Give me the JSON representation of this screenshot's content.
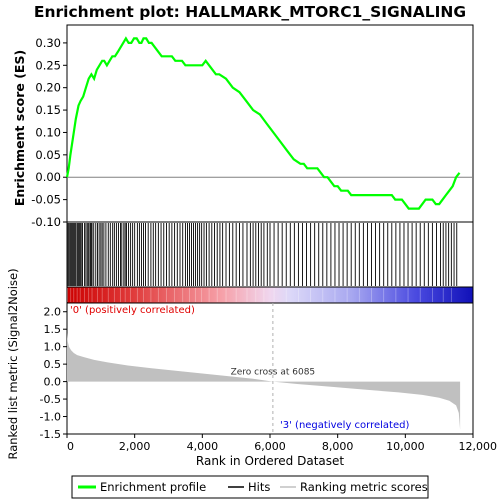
{
  "chart_data": [
    {
      "type": "line",
      "title": "Enrichment plot: HALLMARK_MTORC1_SIGNALING",
      "ylabel": "Enrichment score (ES)",
      "ylim": [
        -0.1,
        0.34
      ],
      "yticks": [
        "0.30",
        "0.25",
        "0.20",
        "0.15",
        "0.10",
        "0.05",
        "0.00",
        "-0.05",
        "-0.10"
      ],
      "ytick_values": [
        0.3,
        0.25,
        0.2,
        0.15,
        0.1,
        0.05,
        0.0,
        -0.05,
        -0.1
      ],
      "xlim": [
        0,
        12000
      ],
      "series": [
        {
          "name": "Enrichment profile",
          "color": "#00ff00",
          "x": [
            0,
            50,
            100,
            180,
            260,
            340,
            400,
            480,
            560,
            640,
            720,
            800,
            880,
            960,
            1040,
            1100,
            1180,
            1260,
            1340,
            1420,
            1500,
            1580,
            1660,
            1740,
            1820,
            1900,
            1980,
            2060,
            2140,
            2200,
            2260,
            2340,
            2420,
            2500,
            2600,
            2700,
            2800,
            2900,
            3000,
            3100,
            3200,
            3300,
            3400,
            3500,
            3600,
            3700,
            3800,
            3900,
            4000,
            4100,
            4200,
            4300,
            4400,
            4500,
            4700,
            4900,
            5100,
            5300,
            5500,
            5700,
            5900,
            6100,
            6300,
            6500,
            6700,
            6900,
            7000,
            7100,
            7200,
            7300,
            7400,
            7500,
            7600,
            7700,
            7800,
            7900,
            8000,
            8100,
            8200,
            8300,
            8400,
            8500,
            8600,
            8700,
            8800,
            8900,
            9000,
            9100,
            9200,
            9300,
            9400,
            9500,
            9600,
            9700,
            9800,
            9900,
            10000,
            10100,
            10200,
            10300,
            10400,
            10500,
            10600,
            10700,
            10800,
            10900,
            11000,
            11100,
            11200,
            11300,
            11400,
            11500,
            11600
          ],
          "values": [
            0.0,
            0.02,
            0.05,
            0.09,
            0.13,
            0.16,
            0.17,
            0.18,
            0.2,
            0.22,
            0.23,
            0.22,
            0.24,
            0.25,
            0.26,
            0.26,
            0.25,
            0.26,
            0.27,
            0.27,
            0.28,
            0.29,
            0.3,
            0.31,
            0.3,
            0.3,
            0.31,
            0.31,
            0.3,
            0.3,
            0.31,
            0.31,
            0.3,
            0.3,
            0.29,
            0.28,
            0.27,
            0.27,
            0.27,
            0.27,
            0.26,
            0.26,
            0.26,
            0.25,
            0.25,
            0.25,
            0.25,
            0.25,
            0.25,
            0.26,
            0.25,
            0.24,
            0.23,
            0.23,
            0.22,
            0.2,
            0.19,
            0.17,
            0.15,
            0.14,
            0.12,
            0.1,
            0.08,
            0.06,
            0.04,
            0.03,
            0.03,
            0.02,
            0.02,
            0.02,
            0.02,
            0.01,
            0.0,
            0.0,
            -0.01,
            -0.02,
            -0.02,
            -0.03,
            -0.03,
            -0.03,
            -0.04,
            -0.04,
            -0.04,
            -0.04,
            -0.04,
            -0.04,
            -0.04,
            -0.04,
            -0.04,
            -0.04,
            -0.04,
            -0.04,
            -0.04,
            -0.05,
            -0.05,
            -0.05,
            -0.06,
            -0.07,
            -0.07,
            -0.07,
            -0.07,
            -0.06,
            -0.05,
            -0.05,
            -0.05,
            -0.06,
            -0.06,
            -0.05,
            -0.04,
            -0.03,
            -0.02,
            0.0,
            0.01
          ]
        }
      ]
    },
    {
      "type": "hits",
      "name": "Hits",
      "xlim": [
        0,
        12000
      ],
      "hit_positions": [
        12,
        40,
        80,
        110,
        140,
        170,
        200,
        230,
        260,
        300,
        330,
        360,
        390,
        420,
        460,
        520,
        560,
        600,
        640,
        680,
        710,
        740,
        790,
        850,
        900,
        950,
        1000,
        1040,
        1090,
        1150,
        1220,
        1280,
        1350,
        1400,
        1460,
        1520,
        1580,
        1620,
        1680,
        1720,
        1760,
        1820,
        1880,
        1940,
        2000,
        2080,
        2140,
        2200,
        2260,
        2320,
        2400,
        2480,
        2550,
        2620,
        2700,
        2780,
        2860,
        2940,
        3020,
        3100,
        3180,
        3260,
        3340,
        3420,
        3500,
        3560,
        3620,
        3680,
        3740,
        3800,
        3860,
        3920,
        3980,
        4050,
        4120,
        4200,
        4280,
        4360,
        4440,
        4520,
        4600,
        4700,
        4800,
        4900,
        5000,
        5100,
        5200,
        5320,
        5420,
        5500,
        5580,
        5660,
        5740,
        5820,
        5920,
        6000,
        6120,
        6240,
        6360,
        6480,
        6600,
        6720,
        6840,
        6960,
        7080,
        7200,
        7320,
        7440,
        7560,
        7680,
        7800,
        7920,
        8040,
        8160,
        8280,
        8400,
        8520,
        8640,
        8760,
        8880,
        9000,
        9120,
        9240,
        9360,
        9480,
        9600,
        9720,
        9840,
        9960,
        10080,
        10200,
        10320,
        10440,
        10560,
        10680,
        10800,
        10920,
        11040,
        11120,
        11200,
        11280,
        11360,
        11440,
        11520
      ]
    },
    {
      "type": "area",
      "name": "Ranking metric scores",
      "ylabel": "Ranked list metric (Signal2Noise)",
      "xlabel": "Rank in Ordered Dataset",
      "ylim": [
        -1.5,
        2.25
      ],
      "yticks": [
        "2.0",
        "1.5",
        "1.0",
        "0.5",
        "0.0",
        "-0.5",
        "-1.0",
        "-1.5"
      ],
      "ytick_values": [
        2.0,
        1.5,
        1.0,
        0.5,
        0.0,
        -0.5,
        -1.0,
        -1.5
      ],
      "xlim": [
        0,
        12000
      ],
      "xticks": [
        "0",
        "2,000",
        "4,000",
        "6,000",
        "8,000",
        "10,000",
        "12,000"
      ],
      "xtick_values": [
        0,
        2000,
        4000,
        6000,
        8000,
        10000,
        12000
      ],
      "x": [
        0,
        20,
        60,
        120,
        200,
        300,
        500,
        800,
        1200,
        1800,
        2500,
        3500,
        4500,
        5500,
        6085,
        6800,
        7800,
        8800,
        9800,
        10500,
        11000,
        11300,
        11500,
        11580,
        11620
      ],
      "values": [
        1.4,
        1.15,
        1.0,
        0.9,
        0.82,
        0.76,
        0.7,
        0.62,
        0.55,
        0.46,
        0.38,
        0.28,
        0.18,
        0.08,
        0.0,
        -0.07,
        -0.15,
        -0.23,
        -0.31,
        -0.38,
        -0.46,
        -0.55,
        -0.68,
        -0.9,
        -1.38
      ],
      "color": "#c0c0c0",
      "annotations": {
        "zero_cross": "Zero cross at 6085",
        "zero_cross_x": 6085,
        "pos_label": "'0' (positively correlated)",
        "neg_label": "'3' (negatively correlated)",
        "pos_color": "#e00000",
        "neg_color": "#0000e0"
      }
    }
  ],
  "legend": {
    "items": [
      {
        "label": "Enrichment profile",
        "color": "#00ff00"
      },
      {
        "label": "Hits",
        "color": "#000000"
      },
      {
        "label": "Ranking metric scores",
        "color": "#c0c0c0"
      }
    ]
  }
}
